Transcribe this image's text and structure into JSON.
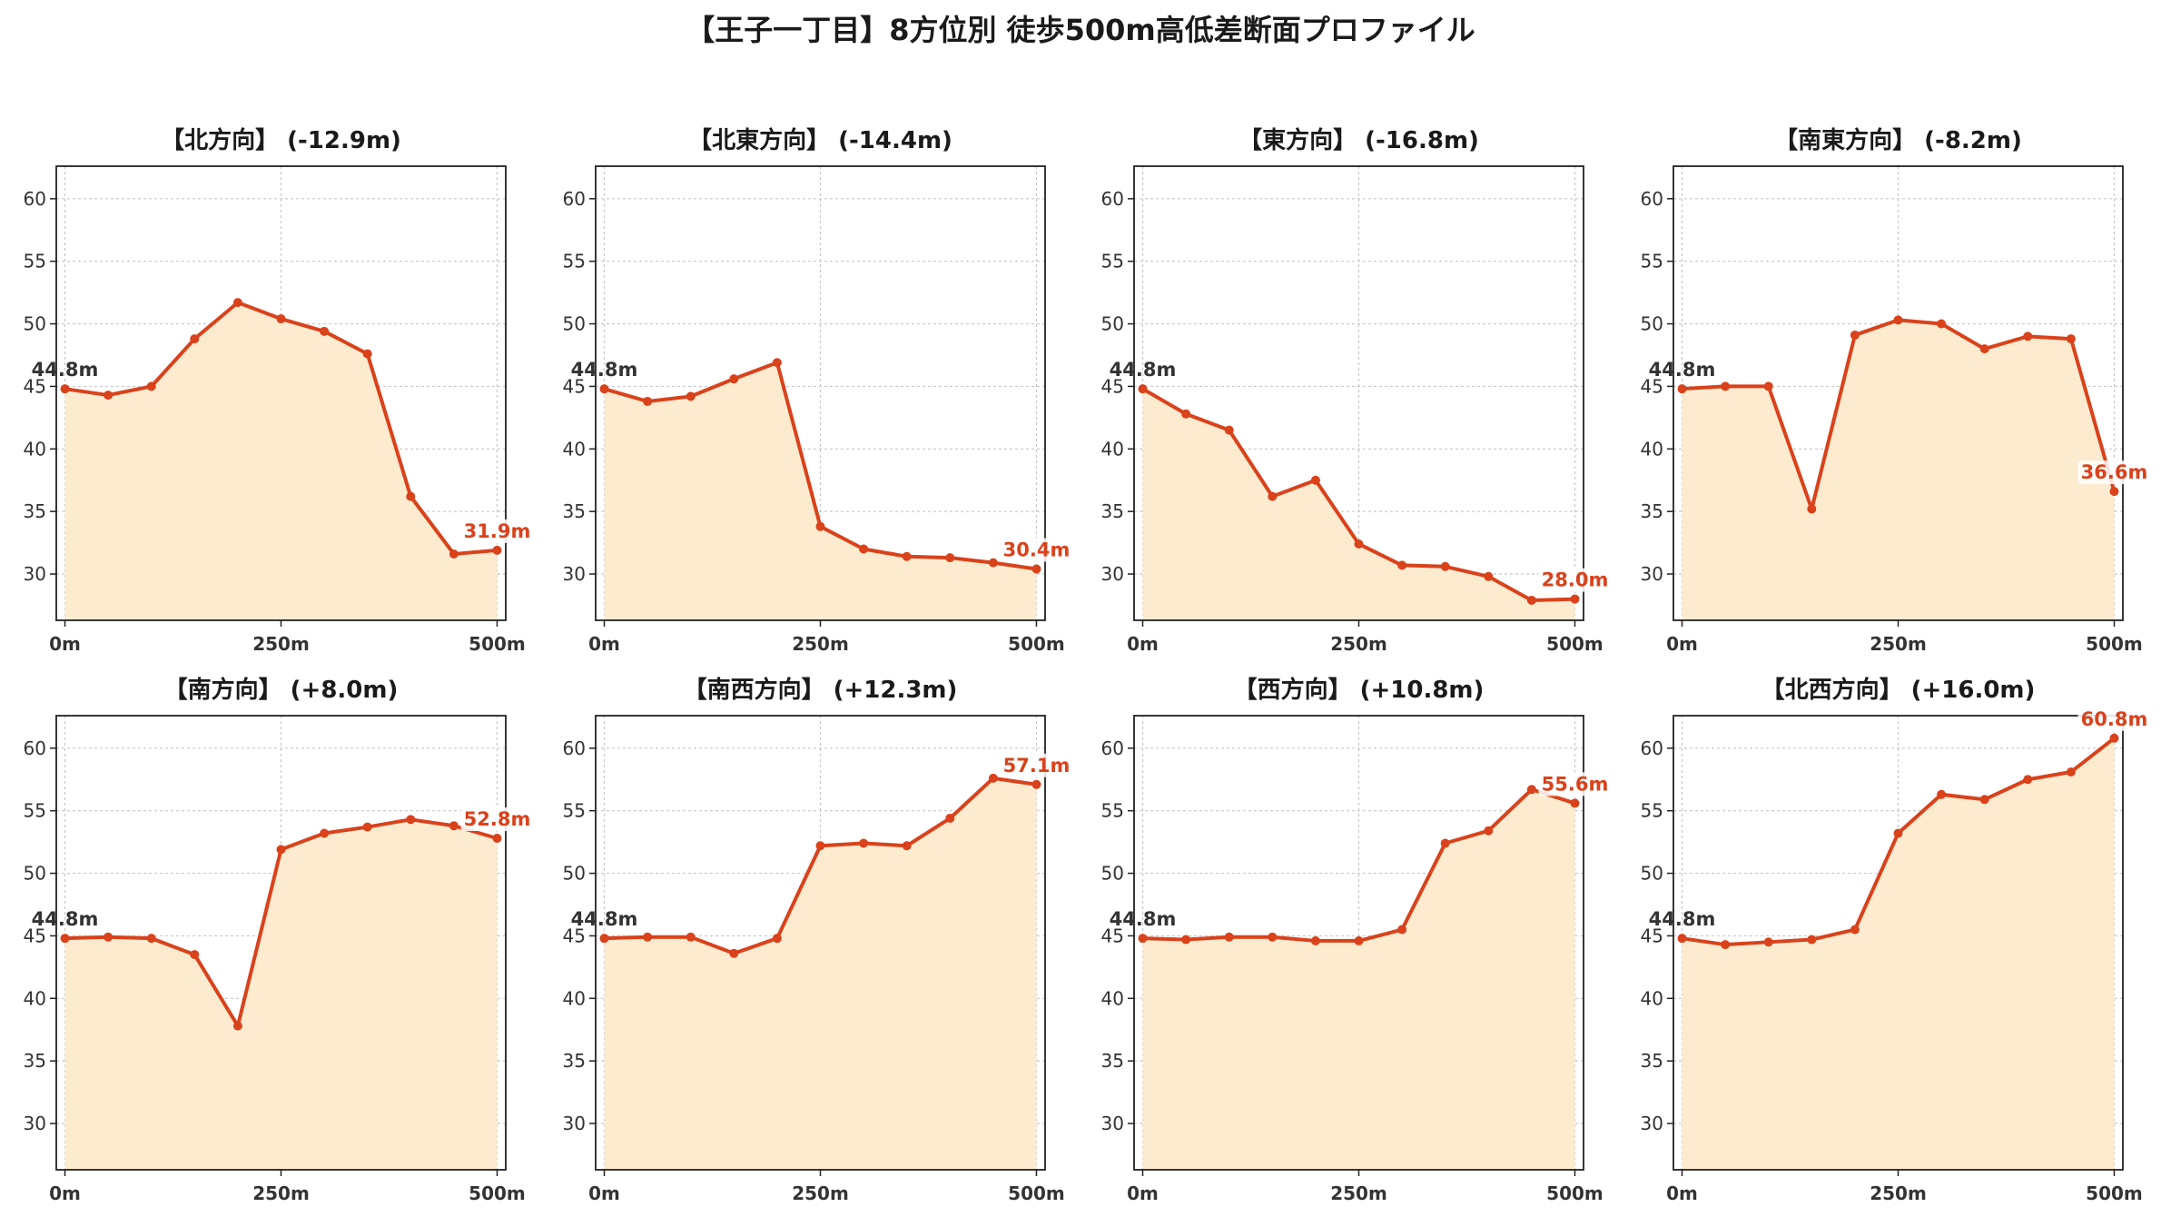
{
  "title": "【王子一丁目】8方位別 徒歩500m高低差断面プロファイル",
  "colors": {
    "line": "#d9421b",
    "fill": "#fdebd0",
    "start_label": "#333333",
    "end_label": "#d9421b",
    "grid": "#c8c8c8"
  },
  "chart_data": [
    {
      "type": "area",
      "title": "【北方向】 (-12.9m)",
      "x": [
        0,
        50,
        100,
        150,
        200,
        250,
        300,
        350,
        400,
        450,
        500
      ],
      "series": [
        {
          "values": [
            44.8,
            44.3,
            45.0,
            48.8,
            51.7,
            50.4,
            49.4,
            47.6,
            36.2,
            31.6,
            31.9
          ]
        }
      ],
      "start_label": "44.8m",
      "end_label": "31.9m",
      "xticks": [
        "0m",
        "250m",
        "500m"
      ],
      "yticks": [
        "30",
        "35",
        "40",
        "45",
        "50",
        "55",
        "60"
      ],
      "xlim": [
        -10,
        510
      ],
      "ylim": [
        26.3,
        62.6
      ],
      "grid": true
    },
    {
      "type": "area",
      "title": "【北東方向】 (-14.4m)",
      "x": [
        0,
        50,
        100,
        150,
        200,
        250,
        300,
        350,
        400,
        450,
        500
      ],
      "series": [
        {
          "values": [
            44.8,
            43.8,
            44.2,
            45.6,
            46.9,
            33.8,
            32.0,
            31.4,
            31.3,
            30.9,
            30.4
          ]
        }
      ],
      "start_label": "44.8m",
      "end_label": "30.4m",
      "xticks": [
        "0m",
        "250m",
        "500m"
      ],
      "yticks": [
        "30",
        "35",
        "40",
        "45",
        "50",
        "55",
        "60"
      ],
      "xlim": [
        -10,
        510
      ],
      "ylim": [
        26.3,
        62.6
      ],
      "grid": true
    },
    {
      "type": "area",
      "title": "【東方向】 (-16.8m)",
      "x": [
        0,
        50,
        100,
        150,
        200,
        250,
        300,
        350,
        400,
        450,
        500
      ],
      "series": [
        {
          "values": [
            44.8,
            42.8,
            41.5,
            36.2,
            37.5,
            32.4,
            30.7,
            30.6,
            29.8,
            27.9,
            28.0
          ]
        }
      ],
      "start_label": "44.8m",
      "end_label": "28.0m",
      "xticks": [
        "0m",
        "250m",
        "500m"
      ],
      "yticks": [
        "30",
        "35",
        "40",
        "45",
        "50",
        "55",
        "60"
      ],
      "xlim": [
        -10,
        510
      ],
      "ylim": [
        26.3,
        62.6
      ],
      "grid": true
    },
    {
      "type": "area",
      "title": "【南東方向】 (-8.2m)",
      "x": [
        0,
        50,
        100,
        150,
        200,
        250,
        300,
        350,
        400,
        450,
        500
      ],
      "series": [
        {
          "values": [
            44.8,
            45.0,
            45.0,
            35.2,
            49.1,
            50.3,
            50.0,
            48.0,
            49.0,
            48.8,
            36.6
          ]
        }
      ],
      "start_label": "44.8m",
      "end_label": "36.6m",
      "xticks": [
        "0m",
        "250m",
        "500m"
      ],
      "yticks": [
        "30",
        "35",
        "40",
        "45",
        "50",
        "55",
        "60"
      ],
      "xlim": [
        -10,
        510
      ],
      "ylim": [
        26.3,
        62.6
      ],
      "grid": true
    },
    {
      "type": "area",
      "title": "【南方向】 (+8.0m)",
      "x": [
        0,
        50,
        100,
        150,
        200,
        250,
        300,
        350,
        400,
        450,
        500
      ],
      "series": [
        {
          "values": [
            44.8,
            44.9,
            44.8,
            43.5,
            37.8,
            51.9,
            53.2,
            53.7,
            54.3,
            53.8,
            52.8
          ]
        }
      ],
      "start_label": "44.8m",
      "end_label": "52.8m",
      "xticks": [
        "0m",
        "250m",
        "500m"
      ],
      "yticks": [
        "30",
        "35",
        "40",
        "45",
        "50",
        "55",
        "60"
      ],
      "xlim": [
        -10,
        510
      ],
      "ylim": [
        26.3,
        62.6
      ],
      "grid": true
    },
    {
      "type": "area",
      "title": "【南西方向】 (+12.3m)",
      "x": [
        0,
        50,
        100,
        150,
        200,
        250,
        300,
        350,
        400,
        450,
        500
      ],
      "series": [
        {
          "values": [
            44.8,
            44.9,
            44.9,
            43.6,
            44.8,
            52.2,
            52.4,
            52.2,
            54.4,
            57.6,
            57.1
          ]
        }
      ],
      "start_label": "44.8m",
      "end_label": "57.1m",
      "xticks": [
        "0m",
        "250m",
        "500m"
      ],
      "yticks": [
        "30",
        "35",
        "40",
        "45",
        "50",
        "55",
        "60"
      ],
      "xlim": [
        -10,
        510
      ],
      "ylim": [
        26.3,
        62.6
      ],
      "grid": true
    },
    {
      "type": "area",
      "title": "【西方向】 (+10.8m)",
      "x": [
        0,
        50,
        100,
        150,
        200,
        250,
        300,
        350,
        400,
        450,
        500
      ],
      "series": [
        {
          "values": [
            44.8,
            44.7,
            44.9,
            44.9,
            44.6,
            44.6,
            45.5,
            52.4,
            53.4,
            56.7,
            55.6
          ]
        }
      ],
      "start_label": "44.8m",
      "end_label": "55.6m",
      "xticks": [
        "0m",
        "250m",
        "500m"
      ],
      "yticks": [
        "30",
        "35",
        "40",
        "45",
        "50",
        "55",
        "60"
      ],
      "xlim": [
        -10,
        510
      ],
      "ylim": [
        26.3,
        62.6
      ],
      "grid": true
    },
    {
      "type": "area",
      "title": "【北西方向】 (+16.0m)",
      "x": [
        0,
        50,
        100,
        150,
        200,
        250,
        300,
        350,
        400,
        450,
        500
      ],
      "series": [
        {
          "values": [
            44.8,
            44.3,
            44.5,
            44.7,
            45.5,
            53.2,
            56.3,
            55.9,
            57.5,
            58.1,
            60.8
          ]
        }
      ],
      "start_label": "44.8m",
      "end_label": "60.8m",
      "xticks": [
        "0m",
        "250m",
        "500m"
      ],
      "yticks": [
        "30",
        "35",
        "40",
        "45",
        "50",
        "55",
        "60"
      ],
      "xlim": [
        -10,
        510
      ],
      "ylim": [
        26.3,
        62.6
      ],
      "grid": true
    }
  ]
}
